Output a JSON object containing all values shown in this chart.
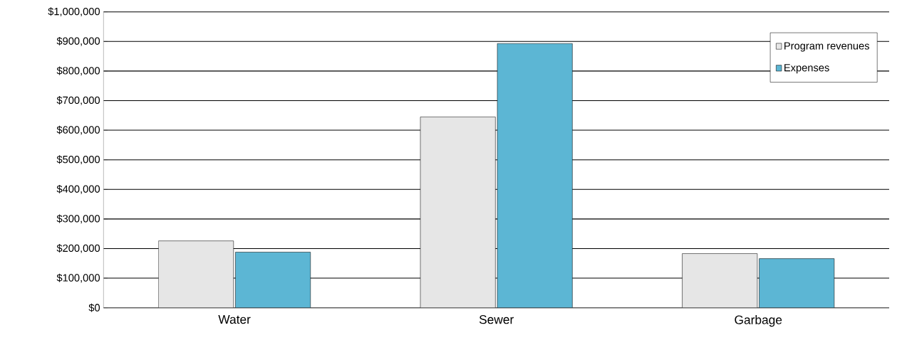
{
  "chart_data": {
    "type": "bar",
    "categories": [
      "Water",
      "Sewer",
      "Garbage"
    ],
    "series": [
      {
        "name": "Program revenues",
        "color": "#e6e6e6",
        "values": [
          226000,
          645000,
          183000
        ]
      },
      {
        "name": "Expenses",
        "color": "#5cb6d4",
        "values": [
          188000,
          893000,
          166000
        ]
      }
    ],
    "ylim": [
      0,
      1000000
    ],
    "yticks": [
      {
        "value": 0,
        "label": "$0"
      },
      {
        "value": 100000,
        "label": "$100,000"
      },
      {
        "value": 200000,
        "label": "$200,000"
      },
      {
        "value": 300000,
        "label": "$300,000"
      },
      {
        "value": 400000,
        "label": "$400,000"
      },
      {
        "value": 500000,
        "label": "$500,000"
      },
      {
        "value": 600000,
        "label": "$600,000"
      },
      {
        "value": 700000,
        "label": "$700,000"
      },
      {
        "value": 800000,
        "label": "$800,000"
      },
      {
        "value": 900000,
        "label": "$900,000"
      },
      {
        "value": 1000000,
        "label": "$1,000,000"
      }
    ],
    "grid": "y",
    "legend": "top right"
  }
}
